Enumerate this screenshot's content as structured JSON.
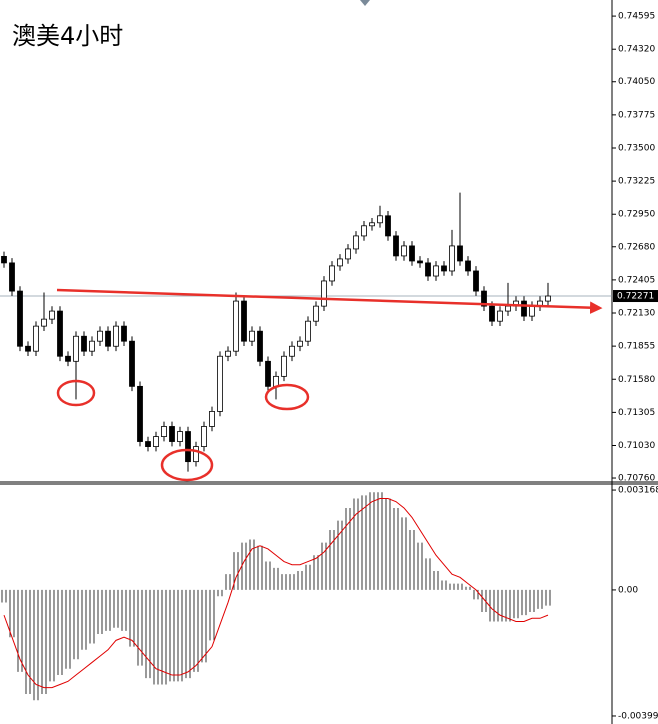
{
  "chart_data": [
    {
      "type": "candlestick",
      "title": "澳美4小时",
      "title_color": "#e8302a",
      "ylim": [
        0.70727,
        0.74712
      ],
      "yticks": [
        0.74595,
        {
          "value": 0.7432,
          "label": "0.74320"
        },
        {
          "value": 0.7405,
          "label": "0.74050"
        },
        0.73775,
        {
          "value": 0.735,
          "label": "0.73500"
        },
        0.73225,
        {
          "value": 0.7295,
          "label": "0.72950"
        },
        {
          "value": 0.7268,
          "label": "0.72680"
        },
        0.72405,
        {
          "value": 0.7213,
          "label": "0.72130"
        },
        0.71855,
        {
          "value": 0.7158,
          "label": "0.71580"
        },
        0.71305,
        {
          "value": 0.7103,
          "label": "0.71030"
        },
        {
          "value": 0.7076,
          "label": "0.70760"
        }
      ],
      "last_price": 0.72271,
      "color": "#000000",
      "open": [
        0.726,
        0.72546,
        0.72312,
        0.71854,
        0.71813,
        0.72021,
        0.72079,
        0.72146,
        0.71771,
        0.71729,
        0.71937,
        0.71813,
        0.71896,
        0.71979,
        0.71854,
        0.72021,
        0.71896,
        0.71521,
        0.71063,
        0.71021,
        0.71104,
        0.71188,
        0.71063,
        0.71146,
        0.70896,
        0.71021,
        0.71188,
        0.71313,
        0.71771,
        0.71813,
        0.72229,
        0.71896,
        0.71979,
        0.71729,
        0.71521,
        0.71604,
        0.71771,
        0.71854,
        0.71896,
        0.72062,
        0.72187,
        0.72396,
        0.72521,
        0.72579,
        0.72662,
        0.7277,
        0.72854,
        0.72879,
        0.72937,
        0.7277,
        0.72604,
        0.72687,
        0.72562,
        0.72546,
        0.72437,
        0.72521,
        0.72479,
        0.72687,
        0.72562,
        0.72479,
        0.72312,
        0.72187,
        0.72062,
        0.72146,
        0.72187,
        0.72229,
        0.72104,
        0.72187,
        0.72229
      ],
      "high": [
        0.7264,
        0.72586,
        0.72352,
        0.71894,
        0.72061,
        0.723,
        0.72186,
        0.72186,
        0.71811,
        0.71977,
        0.71977,
        0.71936,
        0.72019,
        0.72019,
        0.72061,
        0.72061,
        0.71936,
        0.71561,
        0.71103,
        0.71144,
        0.71228,
        0.71228,
        0.71186,
        0.71186,
        0.71061,
        0.71228,
        0.71353,
        0.71811,
        0.71853,
        0.723,
        0.72269,
        0.72019,
        0.72019,
        0.71769,
        0.71644,
        0.71811,
        0.71894,
        0.71936,
        0.72102,
        0.72227,
        0.72436,
        0.72561,
        0.72619,
        0.72702,
        0.7281,
        0.72894,
        0.72919,
        0.7302,
        0.72977,
        0.7281,
        0.72727,
        0.72727,
        0.72602,
        0.72586,
        0.72561,
        0.72561,
        0.7282,
        0.73129,
        0.72602,
        0.72519,
        0.72352,
        0.72227,
        0.72186,
        0.7238,
        0.72269,
        0.72269,
        0.72227,
        0.72269,
        0.7238
      ],
      "low": [
        0.72506,
        0.72272,
        0.71814,
        0.71773,
        0.71773,
        0.71981,
        0.72039,
        0.71731,
        0.71689,
        0.71413,
        0.71773,
        0.71773,
        0.71856,
        0.71814,
        0.71814,
        0.71856,
        0.71481,
        0.71023,
        0.70981,
        0.70981,
        0.71064,
        0.71023,
        0.71023,
        0.70813,
        0.70856,
        0.70981,
        0.71148,
        0.71273,
        0.71731,
        0.71773,
        0.71856,
        0.71856,
        0.71689,
        0.71481,
        0.71413,
        0.71564,
        0.71731,
        0.71814,
        0.71856,
        0.72022,
        0.72147,
        0.72356,
        0.72481,
        0.72539,
        0.72622,
        0.7273,
        0.72814,
        0.72839,
        0.7273,
        0.72564,
        0.72564,
        0.72522,
        0.72506,
        0.72397,
        0.72397,
        0.72439,
        0.72439,
        0.72522,
        0.72439,
        0.72272,
        0.72147,
        0.72022,
        0.72022,
        0.72106,
        0.72147,
        0.72064,
        0.72064,
        0.72147,
        0.72189
      ],
      "close": [
        0.72546,
        0.72312,
        0.71854,
        0.71813,
        0.72021,
        0.72079,
        0.72146,
        0.71771,
        0.71729,
        0.71937,
        0.71813,
        0.71896,
        0.71979,
        0.71854,
        0.72021,
        0.71896,
        0.71521,
        0.71063,
        0.71021,
        0.71104,
        0.71188,
        0.71063,
        0.71146,
        0.70896,
        0.71021,
        0.71188,
        0.71313,
        0.71771,
        0.71813,
        0.72229,
        0.71896,
        0.71979,
        0.71729,
        0.71521,
        0.71604,
        0.71771,
        0.71854,
        0.71896,
        0.72062,
        0.72187,
        0.72396,
        0.72521,
        0.72579,
        0.72662,
        0.7277,
        0.72854,
        0.72879,
        0.72937,
        0.7277,
        0.72604,
        0.72687,
        0.72562,
        0.72546,
        0.72437,
        0.72521,
        0.72479,
        0.72687,
        0.72562,
        0.72479,
        0.72312,
        0.72187,
        0.72062,
        0.72146,
        0.72187,
        0.72229,
        0.72104,
        0.72187,
        0.72229,
        0.72271
      ]
    },
    {
      "type": "macd",
      "ylim": [
        -0.00419,
        0.00336
      ],
      "yticks": [
        0.003168,
        {
          "value": 0,
          "label": "0.00"
        },
        -0.003999
      ],
      "series": [
        {
          "color": "#000000",
          "values": [
            -0.0004,
            -0.0015,
            -0.0026,
            -0.0033,
            -0.0035,
            -0.0033,
            -0.0029,
            -0.0027,
            -0.0025,
            -0.0022,
            -0.0019,
            -0.0017,
            -0.0014,
            -0.0013,
            -0.0012,
            -0.0013,
            -0.0018,
            -0.0024,
            -0.0028,
            -0.003,
            -0.003,
            -0.0029,
            -0.0029,
            -0.0028,
            -0.0026,
            -0.0023,
            -0.0016,
            -0.0002,
            0.0005,
            0.0012,
            0.0015,
            0.0016,
            0.0014,
            0.0009,
            0.0007,
            0.0005,
            0.0005,
            0.0006,
            0.0008,
            0.0011,
            0.0015,
            0.0019,
            0.0022,
            0.0026,
            0.0029,
            0.003,
            0.0031,
            0.0031,
            0.0029,
            0.0026,
            0.0023,
            0.0019,
            0.0015,
            0.001,
            0.0006,
            0.0003,
            0.0002,
            0.0002,
            0.0001,
            -0.0003,
            -0.0007,
            -0.001,
            -0.001,
            -0.001,
            -0.0009,
            -0.0008,
            -0.0007,
            -0.0006,
            -0.0005
          ]
        },
        {
          "color": "#e00000",
          "values": [
            -0.0008,
            -0.0015,
            -0.0022,
            -0.0027,
            -0.003,
            -0.0031,
            -0.0031,
            -0.003,
            -0.0029,
            -0.0027,
            -0.0025,
            -0.0023,
            -0.0021,
            -0.0019,
            -0.0016,
            -0.0015,
            -0.0016,
            -0.0019,
            -0.0022,
            -0.0025,
            -0.0026,
            -0.0027,
            -0.0027,
            -0.0026,
            -0.0024,
            -0.0021,
            -0.0018,
            -0.0011,
            -0.0004,
            0.0004,
            0.0009,
            0.0013,
            0.0014,
            0.0013,
            0.0011,
            0.0009,
            0.0008,
            0.0008,
            0.0009,
            0.001,
            0.0012,
            0.0015,
            0.0018,
            0.0021,
            0.0024,
            0.0026,
            0.0028,
            0.0029,
            0.0029,
            0.0028,
            0.0026,
            0.0023,
            0.0019,
            0.0015,
            0.0011,
            0.0008,
            0.0005,
            0.0004,
            0.0002,
            0,
            -0.0003,
            -0.0006,
            -0.0008,
            -0.0009,
            -0.001,
            -0.001,
            -0.0009,
            -0.0009,
            -0.0008
          ]
        }
      ]
    }
  ]
}
